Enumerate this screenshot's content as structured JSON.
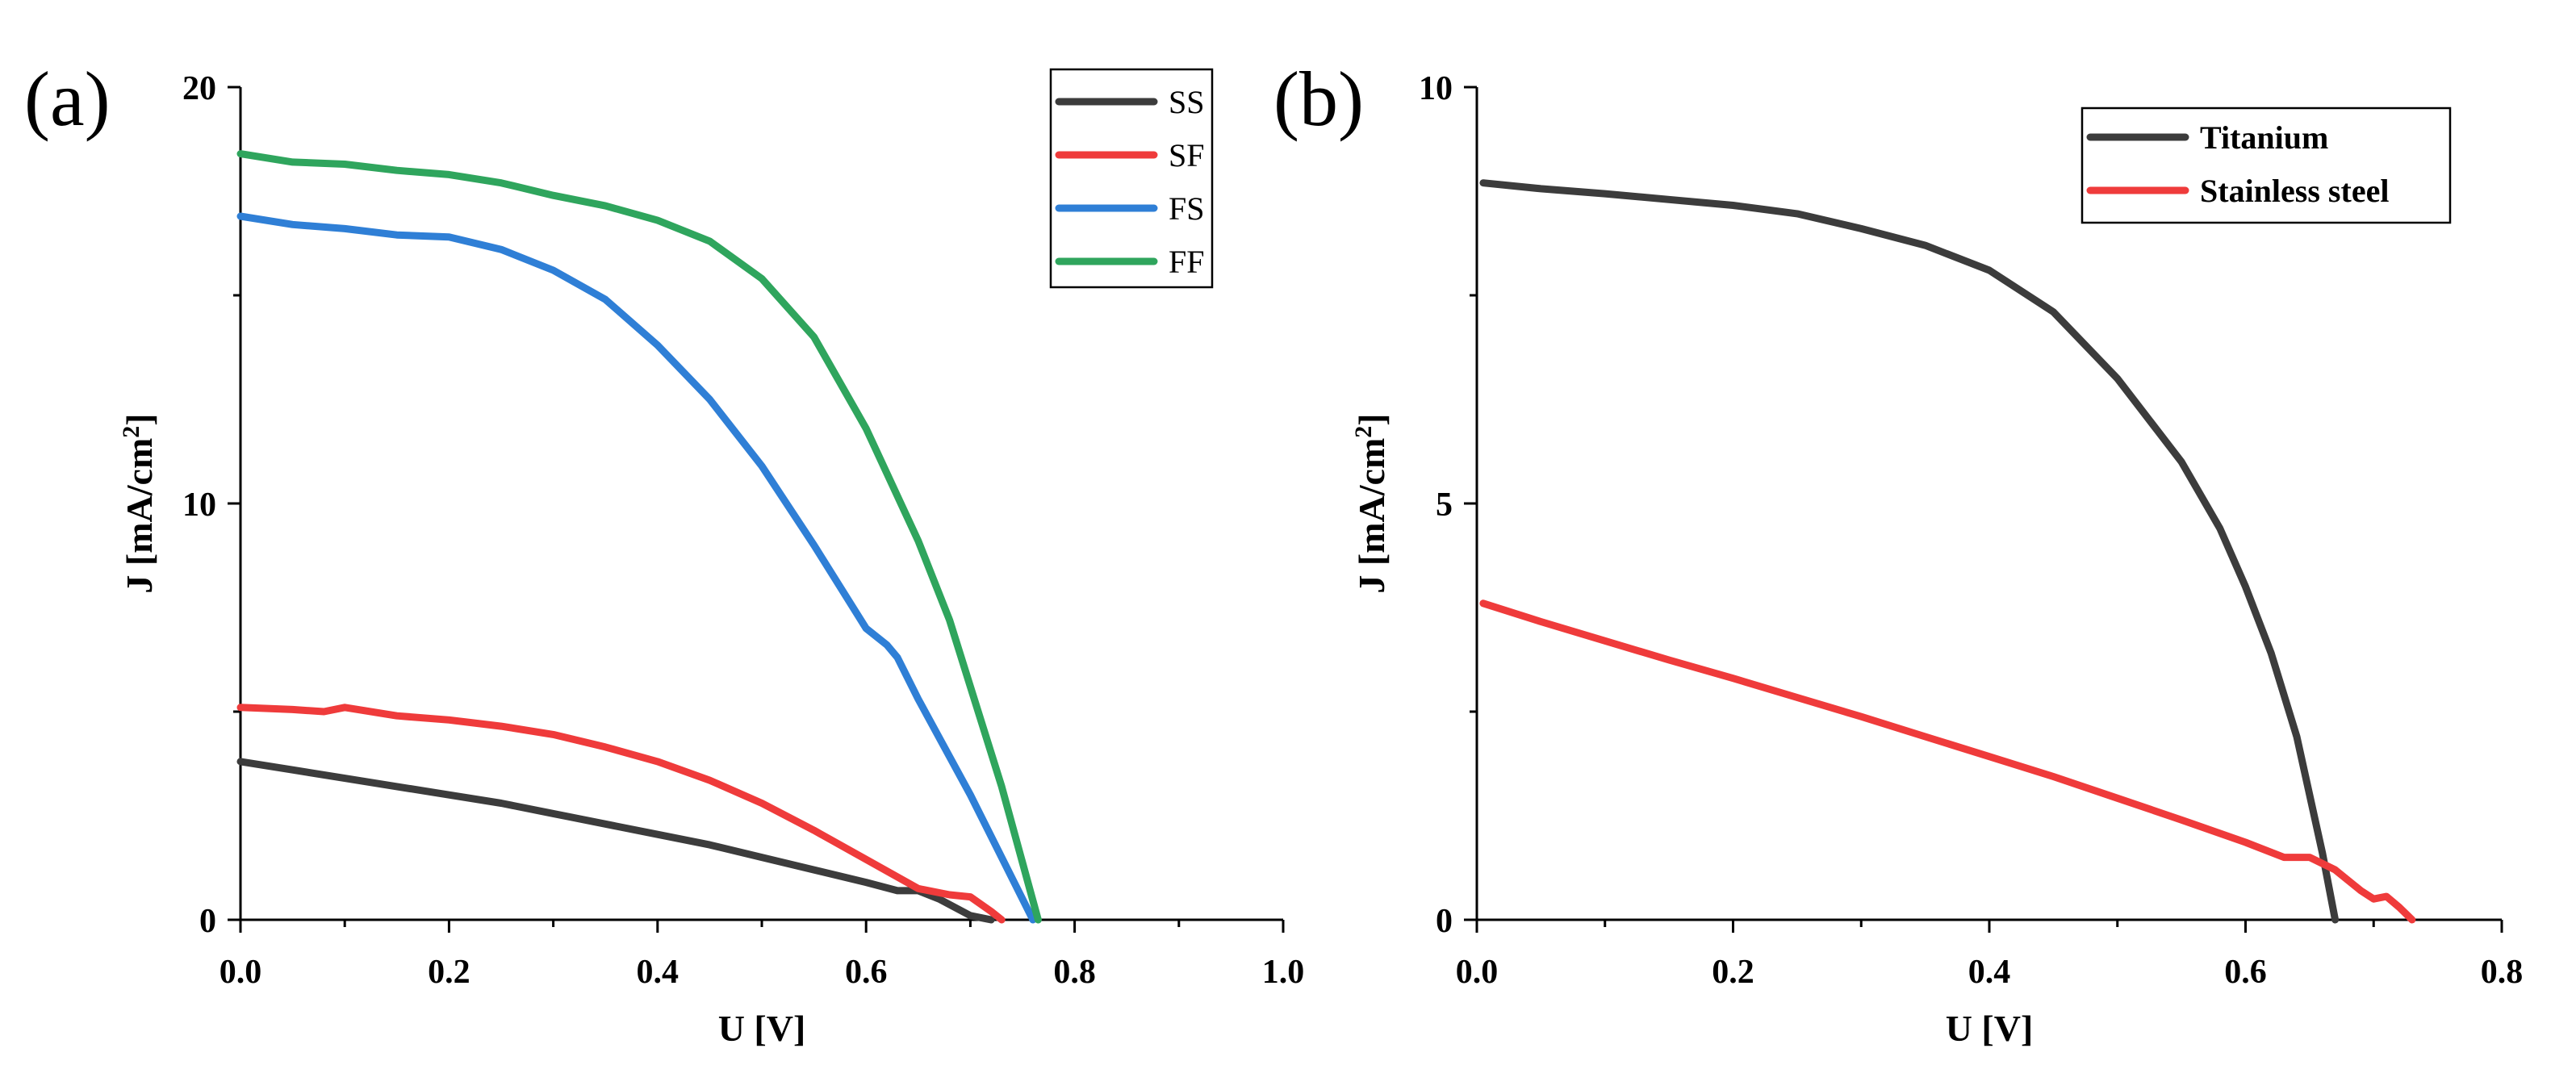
{
  "chart_data": [
    {
      "type": "line",
      "panel_label": "(a)",
      "xlabel": "U [V]",
      "ylabel": "J [mA/cm",
      "ylabel_sup": "2",
      "ylabel_end": "]",
      "xlim": [
        0.0,
        1.0
      ],
      "ylim": [
        0,
        20
      ],
      "xticks": [
        0.0,
        0.2,
        0.4,
        0.6,
        0.8,
        1.0
      ],
      "xtick_labels": [
        "0.0",
        "0.2",
        "0.4",
        "0.6",
        "0.8",
        "1.0"
      ],
      "yticks": [
        0,
        10,
        20
      ],
      "ytick_labels": [
        "0",
        "10",
        "20"
      ],
      "legend_position": "top-right",
      "series": [
        {
          "name": "SS",
          "color": "#3c3c3c",
          "x": [
            0.0,
            0.05,
            0.1,
            0.15,
            0.2,
            0.25,
            0.3,
            0.35,
            0.4,
            0.45,
            0.5,
            0.55,
            0.6,
            0.63,
            0.65,
            0.67,
            0.7,
            0.72
          ],
          "y": [
            3.8,
            3.6,
            3.4,
            3.2,
            3.0,
            2.8,
            2.55,
            2.3,
            2.05,
            1.8,
            1.5,
            1.2,
            0.9,
            0.7,
            0.7,
            0.5,
            0.1,
            0.0
          ]
        },
        {
          "name": "SF",
          "color": "#ef3b3b",
          "x": [
            0.0,
            0.05,
            0.08,
            0.1,
            0.15,
            0.2,
            0.25,
            0.3,
            0.35,
            0.4,
            0.45,
            0.5,
            0.55,
            0.6,
            0.65,
            0.68,
            0.7,
            0.72,
            0.73
          ],
          "y": [
            5.1,
            5.05,
            5.0,
            5.1,
            4.9,
            4.8,
            4.65,
            4.45,
            4.15,
            3.8,
            3.35,
            2.8,
            2.15,
            1.45,
            0.75,
            0.6,
            0.55,
            0.2,
            0.0
          ]
        },
        {
          "name": "FS",
          "color": "#2f7fd6",
          "x": [
            0.0,
            0.05,
            0.1,
            0.15,
            0.2,
            0.25,
            0.3,
            0.35,
            0.4,
            0.45,
            0.5,
            0.55,
            0.6,
            0.62,
            0.63,
            0.65,
            0.7,
            0.76
          ],
          "y": [
            16.9,
            16.7,
            16.6,
            16.45,
            16.4,
            16.1,
            15.6,
            14.9,
            13.8,
            12.5,
            10.9,
            9.0,
            7.0,
            6.6,
            6.3,
            5.3,
            3.0,
            0.0
          ]
        },
        {
          "name": "FF",
          "color": "#2fa55d",
          "x": [
            0.0,
            0.05,
            0.1,
            0.15,
            0.2,
            0.25,
            0.3,
            0.35,
            0.4,
            0.45,
            0.5,
            0.55,
            0.6,
            0.65,
            0.68,
            0.7,
            0.73,
            0.765
          ],
          "y": [
            18.4,
            18.2,
            18.15,
            18.0,
            17.9,
            17.7,
            17.4,
            17.15,
            16.8,
            16.3,
            15.4,
            14.0,
            11.8,
            9.1,
            7.2,
            5.6,
            3.2,
            0.0
          ]
        }
      ]
    },
    {
      "type": "line",
      "panel_label": "(b)",
      "xlabel": "U [V]",
      "ylabel": "J [mA/cm",
      "ylabel_sup": "2",
      "ylabel_end": "]",
      "xlim": [
        0.0,
        0.8
      ],
      "ylim": [
        0,
        10
      ],
      "xticks": [
        0.0,
        0.2,
        0.4,
        0.6,
        0.8
      ],
      "xtick_labels": [
        "0.0",
        "0.2",
        "0.4",
        "0.6",
        "0.8"
      ],
      "yticks": [
        0,
        5,
        10
      ],
      "ytick_labels": [
        "0",
        "5",
        "10"
      ],
      "legend_position": "top-right",
      "series": [
        {
          "name": "Titanium",
          "color": "#3c3c3c",
          "x": [
            0.005,
            0.05,
            0.1,
            0.15,
            0.2,
            0.25,
            0.3,
            0.35,
            0.4,
            0.45,
            0.5,
            0.55,
            0.58,
            0.6,
            0.62,
            0.64,
            0.65,
            0.66,
            0.67
          ],
          "y": [
            8.85,
            8.78,
            8.72,
            8.65,
            8.58,
            8.48,
            8.3,
            8.1,
            7.8,
            7.3,
            6.5,
            5.5,
            4.7,
            4.0,
            3.2,
            2.2,
            1.5,
            0.8,
            0.0
          ]
        },
        {
          "name": "Stainless steel",
          "color": "#ef3b3b",
          "x": [
            0.005,
            0.05,
            0.1,
            0.15,
            0.2,
            0.25,
            0.3,
            0.35,
            0.4,
            0.45,
            0.5,
            0.55,
            0.6,
            0.63,
            0.65,
            0.67,
            0.69,
            0.7,
            0.71,
            0.72,
            0.73
          ],
          "y": [
            3.8,
            3.58,
            3.35,
            3.12,
            2.9,
            2.67,
            2.44,
            2.2,
            1.96,
            1.72,
            1.46,
            1.2,
            0.93,
            0.75,
            0.75,
            0.6,
            0.35,
            0.25,
            0.28,
            0.15,
            0.0
          ]
        }
      ]
    }
  ]
}
